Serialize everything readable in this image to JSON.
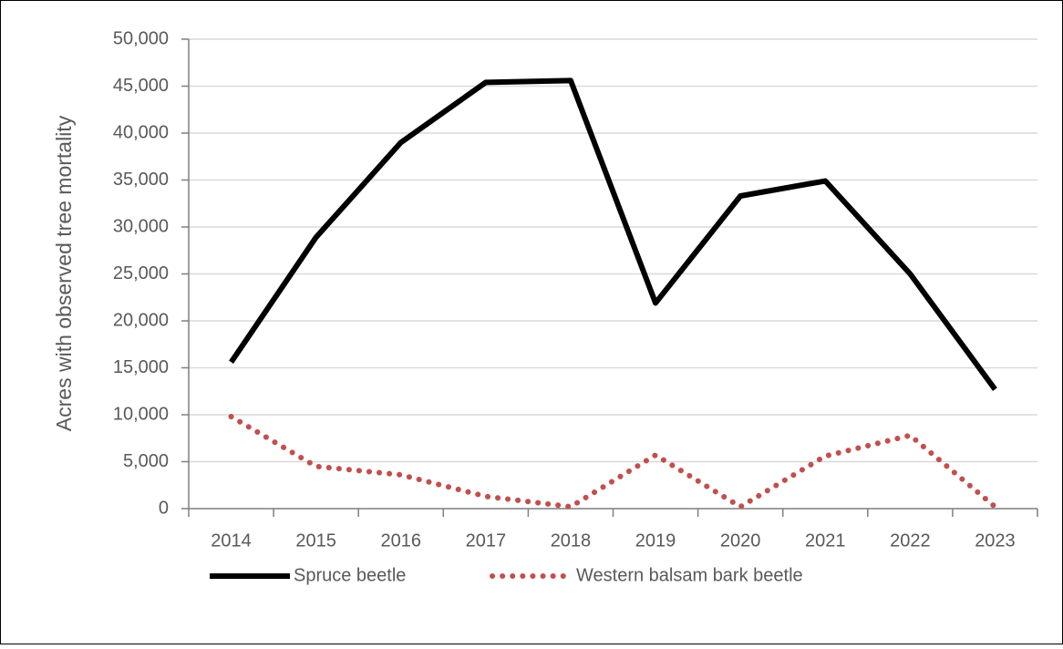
{
  "chart_data": {
    "type": "line",
    "y_axis_label": "Acres with observed tree mortality",
    "categories": [
      "2014",
      "2015",
      "2016",
      "2017",
      "2018",
      "2019",
      "2020",
      "2021",
      "2022",
      "2023"
    ],
    "series": [
      {
        "name": "Spruce beetle",
        "color": "#000000",
        "style": "solid",
        "values": [
          15600,
          28900,
          39000,
          45400,
          45600,
          21900,
          33300,
          34900,
          25000,
          12700
        ]
      },
      {
        "name": "Western balsam bark beetle",
        "color": "#c0504d",
        "style": "dotted",
        "values": [
          9800,
          4500,
          3600,
          1300,
          200,
          5700,
          200,
          5600,
          7800,
          200
        ]
      }
    ],
    "ylim": [
      0,
      50000
    ],
    "yticks": [
      0,
      {
        "value": 5000,
        "label": "5,000"
      },
      {
        "value": 10000,
        "label": "10,000"
      },
      {
        "value": 15000,
        "label": "15,000"
      },
      {
        "value": 20000,
        "label": "20,000"
      },
      {
        "value": 25000,
        "label": "25,000"
      },
      {
        "value": 30000,
        "label": "30,000"
      },
      {
        "value": 35000,
        "label": "35,000"
      },
      {
        "value": 40000,
        "label": "40,000"
      },
      {
        "value": 45000,
        "label": "45,000"
      },
      {
        "value": 50000,
        "label": "50,000"
      }
    ],
    "grid": true,
    "legend": "bottom"
  }
}
